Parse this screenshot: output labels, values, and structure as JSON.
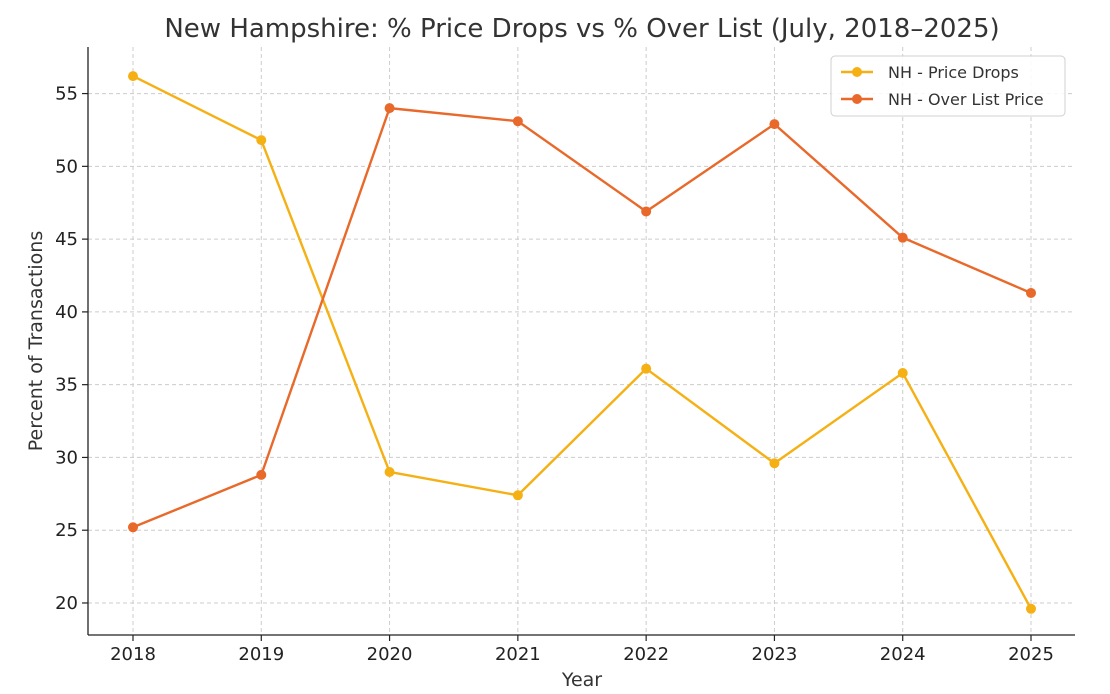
{
  "chart_data": {
    "type": "line",
    "title": "New Hampshire: % Price Drops vs % Over List (July, 2018–2025)",
    "xlabel": "Year",
    "ylabel": "Percent of Transactions",
    "x": [
      "2018",
      "2019",
      "2020",
      "2021",
      "2022",
      "2023",
      "2024",
      "2025"
    ],
    "yticks": [
      20,
      25,
      30,
      35,
      40,
      45,
      50,
      55
    ],
    "ylim": [
      17.8,
      58.2
    ],
    "grid": true,
    "legend_position": "top-right",
    "series": [
      {
        "name": "NH - Price Drops",
        "color": "#f5b014",
        "values": [
          56.2,
          51.8,
          29.0,
          27.4,
          36.1,
          29.6,
          35.8,
          19.6
        ]
      },
      {
        "name": "NH - Over List Price",
        "color": "#e8692a",
        "values": [
          25.2,
          28.8,
          54.0,
          53.1,
          46.9,
          52.9,
          45.1,
          41.3
        ]
      }
    ]
  }
}
